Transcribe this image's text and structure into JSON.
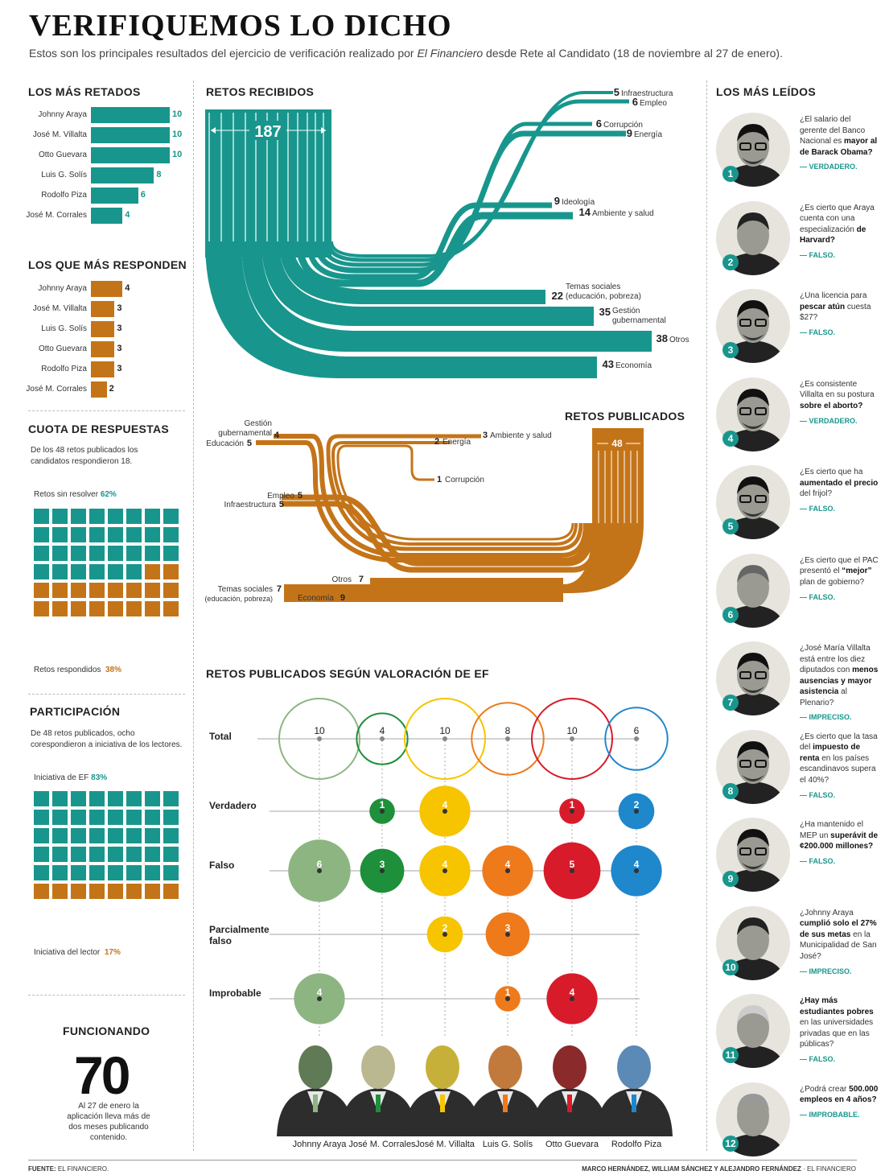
{
  "header": {
    "title": "VERIFIQUEMOS LO DICHO",
    "subtitle_pre": "Estos son los principales resultados del ejercicio de verificación realizado por ",
    "subtitle_em": "El Financiero",
    "subtitle_post": " desde Rete al Candidato (18 de noviembre al 27 de enero)."
  },
  "colors": {
    "teal": "#18968d",
    "orange": "#c47418"
  },
  "mas_retados": {
    "title": "LOS MÁS RETADOS",
    "rows": [
      {
        "name": "Johnny Araya",
        "value": 10
      },
      {
        "name": "José M. Villalta",
        "value": 10
      },
      {
        "name": "Otto Guevara",
        "value": 10
      },
      {
        "name": "Luis G. Solís",
        "value": 8
      },
      {
        "name": "Rodolfo Piza",
        "value": 6
      },
      {
        "name": "José M. Corrales",
        "value": 4
      }
    ]
  },
  "mas_responden": {
    "title": "LOS QUE MÁS RESPONDEN",
    "rows": [
      {
        "name": "Johnny Araya",
        "value": 4
      },
      {
        "name": "José M. Villalta",
        "value": 3
      },
      {
        "name": "Luis G. Solís",
        "value": 3
      },
      {
        "name": "Otto Guevara",
        "value": 3
      },
      {
        "name": "Rodolfo Piza",
        "value": 3
      },
      {
        "name": "José M. Corrales",
        "value": 2
      }
    ]
  },
  "cuota": {
    "title": "CUOTA DE RESPUESTAS",
    "desc": "De los 48 retos publicados los candidatos respondieron 18.",
    "top_label": "Retos sin resolver",
    "top_pct": "62%",
    "bottom_label": "Retos respondidos",
    "bottom_pct": "38%",
    "total": 48,
    "highlighted": 30
  },
  "participacion": {
    "title": "PARTICIPACIÓN",
    "desc": "De 48 retos publicados, ocho corespondieron a iniciativa de los lectores.",
    "top_label": "Iniciativa de EF",
    "top_pct": "83%",
    "bottom_label": "Iniciativa del lector",
    "bottom_pct": "17%",
    "total": 48,
    "highlighted": 40
  },
  "funcionando": {
    "title": "FUNCIONANDO",
    "number": "70",
    "desc": "Al 27 de enero la aplicación lleva más de dos meses publicando contenido."
  },
  "chart_data": [
    {
      "type": "sankey",
      "title": "RETOS RECIBIDOS",
      "total": 187,
      "categories": [
        "Infraestructura",
        "Empleo",
        "Corrupción",
        "Energía",
        "Ideología",
        "Ambiente y salud",
        "Temas sociales (educación, pobreza)",
        "Gestión gubernamental",
        "Otros",
        "Economía"
      ],
      "values": [
        5,
        6,
        6,
        9,
        9,
        14,
        22,
        35,
        38,
        43
      ]
    },
    {
      "type": "sankey",
      "title": "RETOS PUBLICADOS",
      "total": 48,
      "categories": [
        "Ambiente y salud",
        "Energía",
        "Corrupción",
        "Gestión gubernamental",
        "Educación",
        "Empleo",
        "Infraestructura",
        "Otros",
        "Temas sociales (educación, pobreza)",
        "Economía"
      ],
      "values": [
        3,
        2,
        1,
        4,
        5,
        5,
        5,
        7,
        7,
        9
      ]
    },
    {
      "type": "bubble",
      "title": "RETOS PUBLICADOS SEGÚN VALORACIÓN DE EF",
      "candidates": [
        "Johnny Araya",
        "José M. Corrales",
        "José M. Villalta",
        "Luis G. Solís",
        "Otto Guevara",
        "Rodolfo Piza"
      ],
      "candidate_colors": [
        "#8db582",
        "#1e8f3a",
        "#f7c400",
        "#ee7a1c",
        "#d81b2a",
        "#1f87cc"
      ],
      "rows": [
        "Total",
        "Verdadero",
        "Falso",
        "Parcialmente falso",
        "Improbable"
      ],
      "series": [
        {
          "name": "Total",
          "values": [
            10,
            4,
            10,
            8,
            10,
            6
          ]
        },
        {
          "name": "Verdadero",
          "values": [
            0,
            1,
            4,
            0,
            1,
            2
          ]
        },
        {
          "name": "Falso",
          "values": [
            6,
            3,
            4,
            4,
            5,
            4
          ]
        },
        {
          "name": "Parcialmente falso",
          "values": [
            0,
            0,
            2,
            3,
            0,
            0
          ]
        },
        {
          "name": "Improbable",
          "values": [
            4,
            0,
            0,
            1,
            4,
            0
          ]
        }
      ]
    }
  ],
  "recibidos_labels": {
    "infra": "Infraestructura",
    "empleo": "Empleo",
    "corrupcion": "Corrupción",
    "energia": "Energía",
    "ideologia": "Ideología",
    "ambiente": "Ambiente y salud",
    "sociales_1": "Temas sociales",
    "sociales_2": "(educación, pobreza)",
    "gestion_1": "Gestión",
    "gestion_2": "gubernamental",
    "otros": "Otros",
    "economia": "Economía"
  },
  "publicados_labels": {
    "gestion_1": "Gestión",
    "gestion_2": "gubernamental",
    "educacion": "Educación",
    "energia": "Energía",
    "ambiente": "Ambiente y salud",
    "corrupcion": "Corrupción",
    "empleo": "Empleo",
    "infra": "Infraestructura",
    "otros": "Otros",
    "sociales_1": "Temas sociales",
    "sociales_2": "(educación, pobreza)",
    "economia": "Economía"
  },
  "mas_leidos": {
    "title": "LOS MÁS LEÍDOS",
    "items": [
      {
        "rank": "1",
        "q_pre": "¿El salario del gerente del Banco Nacional es ",
        "q_bold": "mayor al de Barack Obama?",
        "q_post": "",
        "verdict": "— VERDADERO.",
        "portrait": "villalta"
      },
      {
        "rank": "2",
        "q_pre": "¿Es cierto que Araya cuenta con una especialización ",
        "q_bold": "de Harvard?",
        "q_post": "",
        "verdict": "— FALSO.",
        "portrait": "araya"
      },
      {
        "rank": "3",
        "q_pre": "¿Una licencia para ",
        "q_bold": "pescar atún",
        "q_post": " cuesta $27?",
        "verdict": "— FALSO.",
        "portrait": "villalta"
      },
      {
        "rank": "4",
        "q_pre": "¿Es consistente Villalta en su postura ",
        "q_bold": "sobre el aborto?",
        "q_post": "",
        "verdict": "— VERDADERO.",
        "portrait": "villalta"
      },
      {
        "rank": "5",
        "q_pre": "¿Es cierto que ha ",
        "q_bold": "aumentado el precio",
        "q_post": " del frijol?",
        "verdict": "— FALSO.",
        "portrait": "villalta"
      },
      {
        "rank": "6",
        "q_pre": "¿Es cierto que el PAC presentó el ",
        "q_bold": "“mejor”",
        "q_post": " plan de gobierno?",
        "verdict": "— FALSO.",
        "portrait": "solis"
      },
      {
        "rank": "7",
        "q_pre": "¿José María Villalta está entre los diez diputados con ",
        "q_bold": "menos ausencias y mayor asistencia",
        "q_post": " al Plenario?",
        "verdict": "— IMPRECISO.",
        "portrait": "villalta"
      },
      {
        "rank": "8",
        "q_pre": "¿Es cierto que la tasa del ",
        "q_bold": "impuesto de renta",
        "q_post": " en los países escandinavos supera el 40%?",
        "verdict": "— FALSO.",
        "portrait": "villalta"
      },
      {
        "rank": "9",
        "q_pre": "¿Ha mantenido el MEP un ",
        "q_bold": "superávit de ¢200.000 millones?",
        "q_post": "",
        "verdict": "— FALSO.",
        "portrait": "villalta"
      },
      {
        "rank": "10",
        "q_pre": "¿Johnny Araya ",
        "q_bold": "cumplió solo el 27% de sus metas",
        "q_post": " en la Municipalidad de San José?",
        "verdict": "— IMPRECISO.",
        "portrait": "araya"
      },
      {
        "rank": "11",
        "q_pre": "",
        "q_bold": "¿Hay más estudiantes pobres",
        "q_post": " en las universidades privadas que en las públicas?",
        "verdict": "— FALSO.",
        "portrait": "corrales"
      },
      {
        "rank": "12",
        "q_pre": "¿Podrá crear ",
        "q_bold": "500.000 empleos en 4 años?",
        "q_post": "",
        "verdict": "— IMPROBABLE.",
        "portrait": "guevara"
      }
    ]
  },
  "footer": {
    "source_label": "FUENTE:",
    "source": " EL FINANCIERO.",
    "credits": "MARCO HERNÁNDEZ, WILLIAM SÁNCHEZ Y ALEJANDRO FERNÁNDEZ",
    "credits_post": " · EL FINANCIERO"
  }
}
